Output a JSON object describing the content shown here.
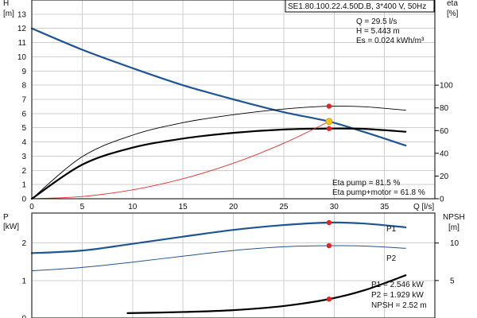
{
  "chart_data": [
    {
      "type": "line",
      "model_label": "SE1.80.100.22.4.50D.B, 3*400 V, 50Hz",
      "ylabel_left": "H",
      "ylabel_left_unit": "[m]",
      "ylabel_right": "eta",
      "ylabel_right_unit": "[%]",
      "xlabel": "Q [l/s]",
      "xlim": [
        0,
        40
      ],
      "ylim_left": [
        0,
        14
      ],
      "ylim_right": [
        0,
        175
      ],
      "x_ticks": [
        "0",
        "5",
        "10",
        "15",
        "20",
        "25",
        "30",
        "35"
      ],
      "y_left_ticks": [
        "0",
        "1",
        "2",
        "3",
        "4",
        "5",
        "6",
        "7",
        "8",
        "9",
        "10",
        "11",
        "12",
        "13"
      ],
      "y_right_ticks": [
        "0",
        "20",
        "40",
        "60",
        "80",
        "100"
      ],
      "grid": true,
      "series": [
        {
          "id": "head",
          "color": "#1f5596",
          "width": 2.2,
          "x": [
            0,
            5,
            10,
            15,
            20,
            25,
            29.5,
            33,
            37.1
          ],
          "y": [
            12.0,
            10.5,
            9.2,
            8.0,
            7.0,
            6.1,
            5.443,
            4.7,
            3.75
          ]
        },
        {
          "id": "eta-pump",
          "color": "#000000",
          "width": 0.9,
          "axis": "right",
          "x": [
            0,
            5,
            10,
            15,
            20,
            25,
            29.5,
            33,
            37.1
          ],
          "y": [
            0,
            37,
            56,
            67,
            74,
            79,
            81.5,
            81,
            78
          ]
        },
        {
          "id": "eta-pump-motor",
          "color": "#000000",
          "width": 2.2,
          "axis": "right",
          "x": [
            0,
            5,
            10,
            15,
            20,
            25,
            29.5,
            33,
            37.1
          ],
          "y": [
            0,
            30,
            45,
            53,
            58,
            61,
            61.8,
            61.5,
            59
          ]
        },
        {
          "id": "system-curve",
          "color": "#ee3030",
          "width": 0.9,
          "x": [
            0,
            5,
            10,
            15,
            20,
            25,
            29.5
          ],
          "y": [
            0,
            0.157,
            0.625,
            1.41,
            2.5,
            3.91,
            5.443
          ]
        }
      ],
      "operating_point": {
        "x": 29.5,
        "head": 5.443,
        "eta_pump": 81.5,
        "eta_total": 61.8,
        "head_color": "#f5c518",
        "marker_color": "#e8211e"
      },
      "info_top": [
        "Q = 29.5 l/s",
        "H = 5.443 m",
        "Es = 0.024 kWh/m³"
      ],
      "info_bottom": [
        "Eta pump = 81.5 %",
        "Eta pump+motor = 61.8 %"
      ]
    },
    {
      "type": "line",
      "ylabel_left": "P",
      "ylabel_left_unit": "[kW]",
      "ylabel_right": "NPSH",
      "ylabel_right_unit": "[m]",
      "xlim": [
        0,
        40
      ],
      "ylim_left": [
        0,
        2.8
      ],
      "ylim_right": [
        0,
        14
      ],
      "y_left_ticks": [
        "0",
        "1",
        "2"
      ],
      "y_right_ticks": [
        "5",
        "10"
      ],
      "grid": true,
      "series": [
        {
          "id": "p1",
          "name": "P1",
          "color": "#1f5596",
          "width": 2.2,
          "x": [
            0,
            5,
            10,
            15,
            20,
            25,
            29.5,
            33,
            37.1
          ],
          "y": [
            1.73,
            1.8,
            1.98,
            2.17,
            2.35,
            2.48,
            2.546,
            2.52,
            2.42
          ]
        },
        {
          "id": "p2",
          "name": "P2",
          "color": "#1f5596",
          "width": 1.0,
          "x": [
            0,
            5,
            10,
            15,
            20,
            25,
            29.5,
            33,
            37.1
          ],
          "y": [
            1.26,
            1.35,
            1.49,
            1.65,
            1.8,
            1.9,
            1.929,
            1.92,
            1.86
          ]
        },
        {
          "id": "npsh",
          "color": "#000000",
          "width": 2.2,
          "axis": "right",
          "x": [
            9.5,
            15,
            20,
            25,
            29.5,
            33,
            37.1
          ],
          "y": [
            0.65,
            0.8,
            1.05,
            1.6,
            2.52,
            3.7,
            5.7
          ]
        }
      ],
      "operating_point": {
        "x": 29.5,
        "p1": 2.546,
        "p2": 1.929,
        "npsh": 2.52,
        "marker_color": "#e8211e"
      },
      "info_bottom": [
        "P1 = 2.546 kW",
        "P2 = 1.929 kW",
        "NPSH = 2.52 m"
      ]
    }
  ]
}
